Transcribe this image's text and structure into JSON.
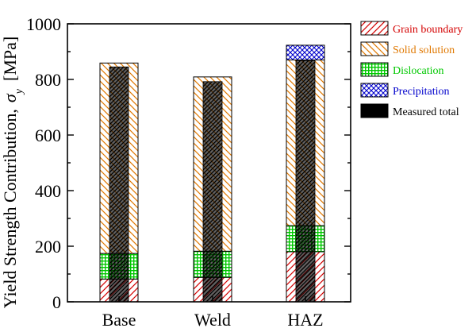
{
  "chart_data": {
    "type": "bar",
    "categories": [
      "Base",
      "Weld",
      "HAZ"
    ],
    "ylabel": "Yield Strength Contribution,",
    "ysymbol": "σ",
    "ysub": "y",
    "yunit": "[MPa]",
    "ylim": [
      0,
      1000
    ],
    "yticks": [
      0,
      200,
      400,
      600,
      800,
      1000
    ],
    "stacked": true,
    "series": [
      {
        "name": "Grain boundary",
        "values": [
          82,
          88,
          180
        ],
        "color": "#d40000",
        "hatch": "diag-right"
      },
      {
        "name": "Dislocation",
        "values": [
          92,
          94,
          94
        ],
        "color": "#00c800",
        "hatch": "grid"
      },
      {
        "name": "Solid solution",
        "values": [
          685,
          627,
          596
        ],
        "color": "#e07800",
        "hatch": "diag-left"
      },
      {
        "name": "Precipitation",
        "values": [
          0,
          0,
          53
        ],
        "color": "#0000cc",
        "hatch": "cross"
      }
    ],
    "measured_total": {
      "name": "Measured total",
      "values": [
        845,
        792,
        868
      ],
      "color": "#000000"
    },
    "legend": {
      "position": "right",
      "order": [
        "Grain boundary",
        "Solid solution",
        "Dislocation",
        "Precipitation",
        "Measured total"
      ]
    }
  }
}
